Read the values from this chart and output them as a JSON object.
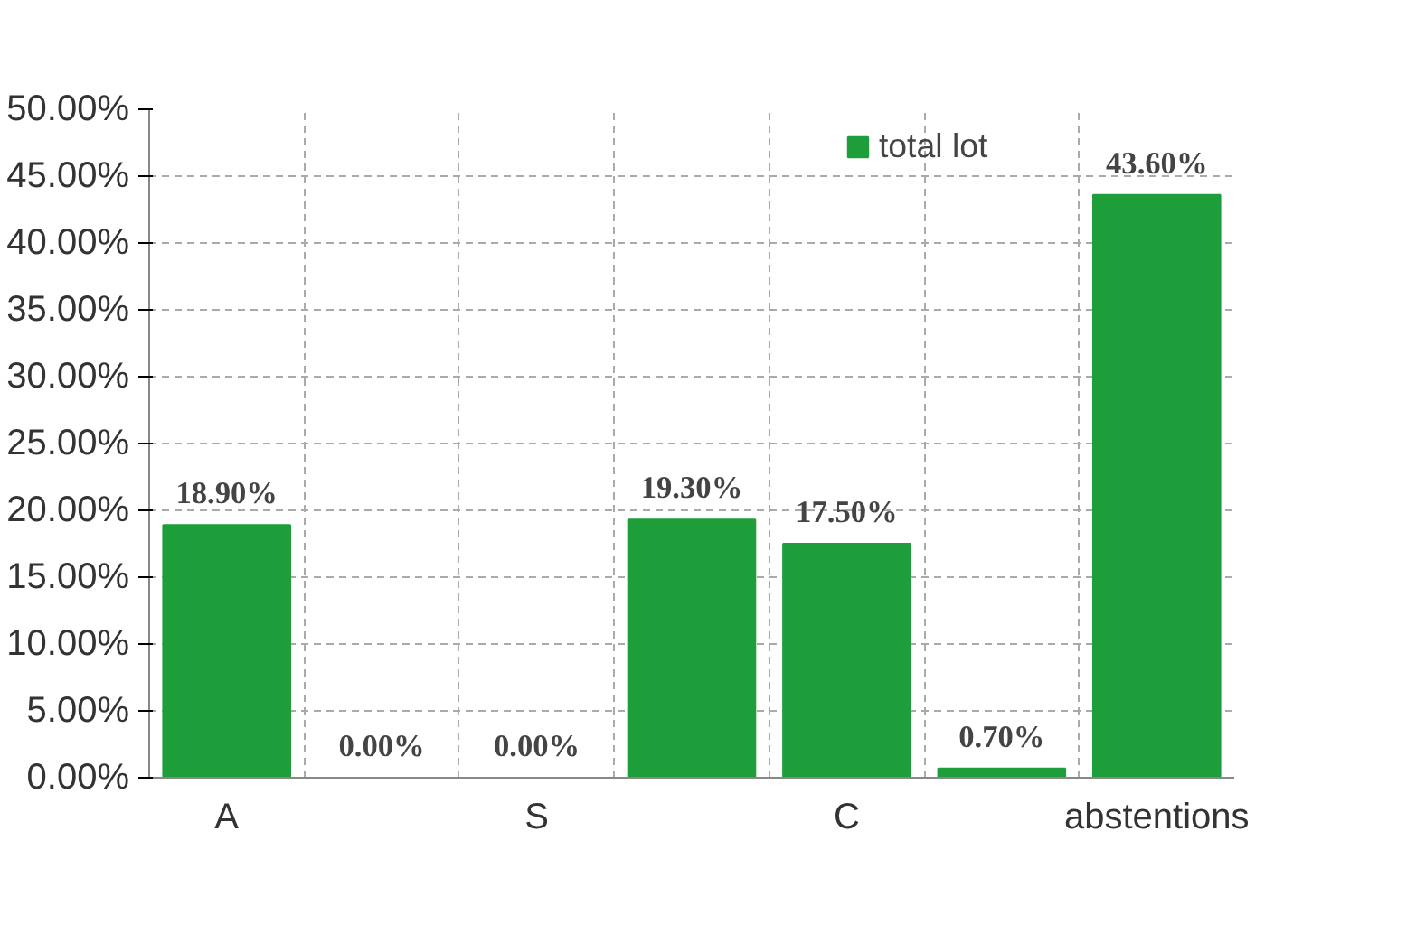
{
  "chart_data": {
    "type": "bar",
    "categories": [
      "A",
      null,
      "S",
      null,
      "C",
      null,
      "abstentions"
    ],
    "series": [
      {
        "name": "total lot",
        "color": "#1e9e3a",
        "values": [
          18.9,
          0.0,
          0.0,
          19.3,
          17.5,
          0.7,
          43.6
        ]
      }
    ],
    "value_labels": [
      "18.90%",
      "0.00%",
      "0.00%",
      "19.30%",
      "17.50%",
      "0.70%",
      "43.60%"
    ],
    "ylim": [
      0,
      50
    ],
    "yticks": [
      {
        "value": 0,
        "label": "0.00%"
      },
      {
        "value": 5,
        "label": "5.00%"
      },
      {
        "value": 10,
        "label": "10.00%"
      },
      {
        "value": 15,
        "label": "15.00%"
      },
      {
        "value": 20,
        "label": "20.00%"
      },
      {
        "value": 25,
        "label": "25.00%"
      },
      {
        "value": 30,
        "label": "30.00%"
      },
      {
        "value": 35,
        "label": "35.00%"
      },
      {
        "value": 40,
        "label": "40.00%"
      },
      {
        "value": 45,
        "label": "45.00%"
      },
      {
        "value": 50,
        "label": "50.00%"
      }
    ],
    "grid": true,
    "legend": "top right"
  }
}
